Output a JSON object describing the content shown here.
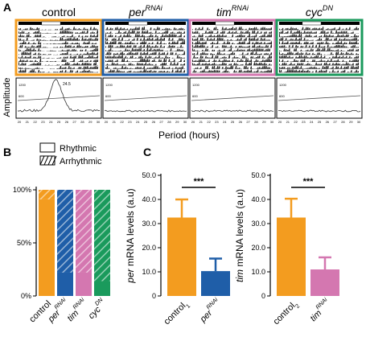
{
  "panel_labels": {
    "a": "A",
    "b": "B",
    "c": "C"
  },
  "actograms": {
    "panels": [
      {
        "base": "control",
        "sup": "",
        "italic": false,
        "color": "#f39c1f"
      },
      {
        "base": "per",
        "sup": "RNAi",
        "italic": true,
        "color": "#1f5ea8"
      },
      {
        "base": "tim",
        "sup": "RNAi",
        "italic": true,
        "color": "#d477b0"
      },
      {
        "base": "cyc",
        "sup": "DN",
        "italic": true,
        "color": "#1a9a5c"
      }
    ],
    "y_label": "Amplitude",
    "x_label": "Period (hours)",
    "peak_label": "24.5",
    "tick_labels": [
      "20",
      "21",
      "22",
      "23",
      "24",
      "25",
      "26",
      "27",
      "28",
      "29",
      "30"
    ],
    "y_ticks": [
      "1200",
      "600"
    ]
  },
  "chart_data": [
    {
      "type": "bar",
      "title": "",
      "categories": [
        "control",
        "per RNAi",
        "tim RNAi",
        "cyc DN"
      ],
      "category_labels": [
        {
          "base": "control",
          "sup": ""
        },
        {
          "base": "per",
          "sup": "RNAi"
        },
        {
          "base": "tim",
          "sup": "RNAi"
        },
        {
          "base": "cyc",
          "sup": "DN"
        }
      ],
      "series": [
        {
          "name": "Rhythmic",
          "values": [
            91,
            22,
            22,
            14
          ]
        },
        {
          "name": "Arrhythmic",
          "values": [
            9,
            78,
            78,
            86
          ]
        }
      ],
      "colors": [
        "#f39c1f",
        "#1f5ea8",
        "#d477b0",
        "#1a9a5c"
      ],
      "y_ticks": [
        "0%",
        "50%",
        "100%"
      ],
      "ylim": [
        0,
        100
      ],
      "legend": [
        "Rhythmic",
        "Arrhythmic"
      ],
      "legend_position": "top-right"
    },
    {
      "type": "bar",
      "categories": [
        "control1",
        "per RNAi"
      ],
      "category_labels": [
        {
          "base": "control",
          "sub": "1",
          "sup": ""
        },
        {
          "base": "per",
          "sub": "",
          "sup": "RNAi"
        }
      ],
      "values": [
        32.5,
        10.3
      ],
      "errors": [
        7.5,
        5.2
      ],
      "colors": [
        "#f39c1f",
        "#1f5ea8"
      ],
      "ylabel_italic": "per",
      "ylabel_rest": " mRNA levels (a.u)",
      "ylim": [
        0,
        50
      ],
      "y_ticks": [
        "0",
        "10.0",
        "20.0",
        "30.0",
        "40.0",
        "50.0"
      ],
      "significance": "***"
    },
    {
      "type": "bar",
      "categories": [
        "control2",
        "tim RNAi"
      ],
      "category_labels": [
        {
          "base": "control",
          "sub": "2",
          "sup": ""
        },
        {
          "base": "tim",
          "sub": "",
          "sup": "RNAi"
        }
      ],
      "values": [
        32.5,
        11.0
      ],
      "errors": [
        7.8,
        5.0
      ],
      "colors": [
        "#f39c1f",
        "#d477b0"
      ],
      "ylabel_italic": "tim",
      "ylabel_rest": " mRNA levels (a.u)",
      "ylim": [
        0,
        50
      ],
      "y_ticks": [
        "0",
        "10.0",
        "20.0",
        "30.0",
        "40.0",
        "50.0"
      ],
      "significance": "***"
    }
  ]
}
